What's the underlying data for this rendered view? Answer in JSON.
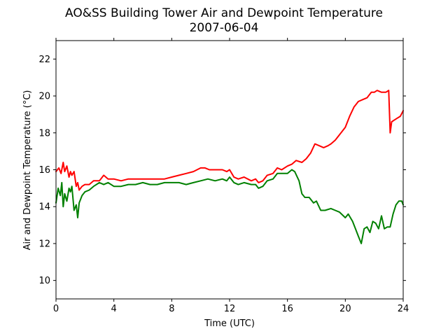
{
  "chart_data": {
    "type": "line",
    "title": "AO&SS Building Tower Air and Dewpoint Temperature",
    "subtitle": "2007-06-04",
    "xlabel": "Time (UTC)",
    "ylabel": "Air and Dewpoint Temperature (°C)",
    "xlim": [
      0,
      24
    ],
    "ylim": [
      9,
      23
    ],
    "xticks": [
      0,
      4,
      8,
      12,
      16,
      20,
      24
    ],
    "yticks": [
      10,
      12,
      14,
      16,
      18,
      20,
      22
    ],
    "xtick_labels": [
      "0",
      "4",
      "8",
      "12",
      "16",
      "20",
      "24"
    ],
    "ytick_labels": [
      "10",
      "12",
      "14",
      "16",
      "18",
      "20",
      "22"
    ],
    "grid": false,
    "series": [
      {
        "color": "#ff0000",
        "x": [
          0,
          0.2,
          0.35,
          0.5,
          0.6,
          0.75,
          0.9,
          1.0,
          1.1,
          1.25,
          1.4,
          1.5,
          1.6,
          1.8,
          2.0,
          2.3,
          2.6,
          3.0,
          3.3,
          3.6,
          4.0,
          4.5,
          5.0,
          5.5,
          6.0,
          6.5,
          7.0,
          7.5,
          8.0,
          8.5,
          9.0,
          9.5,
          10.0,
          10.3,
          10.6,
          11.0,
          11.5,
          11.8,
          12.0,
          12.3,
          12.6,
          13.0,
          13.5,
          13.8,
          14.0,
          14.3,
          14.6,
          15.0,
          15.3,
          15.6,
          16.0,
          16.3,
          16.6,
          17.0,
          17.3,
          17.6,
          17.9,
          18.2,
          18.5,
          18.8,
          19.0,
          19.3,
          19.6,
          20.0,
          20.3,
          20.6,
          20.9,
          21.2,
          21.5,
          21.8,
          22.0,
          22.2,
          22.5,
          22.8,
          23.0,
          23.1,
          23.2,
          23.4,
          23.6,
          23.8,
          24.0
        ],
        "y": [
          15.9,
          16.1,
          15.8,
          16.4,
          15.9,
          16.2,
          15.6,
          15.9,
          15.7,
          15.9,
          15.1,
          15.3,
          14.9,
          15.1,
          15.2,
          15.2,
          15.4,
          15.4,
          15.7,
          15.5,
          15.5,
          15.4,
          15.5,
          15.5,
          15.5,
          15.5,
          15.5,
          15.5,
          15.6,
          15.7,
          15.8,
          15.9,
          16.1,
          16.1,
          16.0,
          16.0,
          16.0,
          15.9,
          16.0,
          15.6,
          15.5,
          15.6,
          15.4,
          15.5,
          15.3,
          15.4,
          15.7,
          15.8,
          16.1,
          16.0,
          16.2,
          16.3,
          16.5,
          16.4,
          16.6,
          16.9,
          17.4,
          17.3,
          17.2,
          17.3,
          17.4,
          17.6,
          17.9,
          18.3,
          18.9,
          19.4,
          19.7,
          19.8,
          19.9,
          20.2,
          20.2,
          20.3,
          20.2,
          20.2,
          20.3,
          18.0,
          18.6,
          18.7,
          18.8,
          18.9,
          19.2
        ]
      },
      {
        "color": "#008000",
        "x": [
          0,
          0.15,
          0.3,
          0.4,
          0.5,
          0.6,
          0.75,
          0.9,
          1.0,
          1.1,
          1.25,
          1.4,
          1.5,
          1.6,
          1.8,
          2.0,
          2.3,
          2.6,
          3.0,
          3.3,
          3.6,
          4.0,
          4.5,
          5.0,
          5.5,
          6.0,
          6.5,
          7.0,
          7.5,
          8.0,
          8.5,
          9.0,
          9.5,
          10.0,
          10.5,
          11.0,
          11.5,
          11.8,
          12.0,
          12.3,
          12.6,
          13.0,
          13.5,
          13.8,
          14.0,
          14.3,
          14.6,
          15.0,
          15.3,
          15.6,
          16.0,
          16.3,
          16.5,
          16.8,
          17.0,
          17.2,
          17.5,
          17.8,
          18.0,
          18.3,
          18.6,
          19.0,
          19.3,
          19.6,
          20.0,
          20.2,
          20.5,
          20.7,
          20.9,
          21.1,
          21.3,
          21.5,
          21.7,
          21.9,
          22.1,
          22.3,
          22.5,
          22.7,
          22.9,
          23.1,
          23.3,
          23.5,
          23.7,
          23.9,
          24.0
        ],
        "y": [
          14.2,
          15.0,
          14.6,
          15.3,
          14.0,
          14.7,
          14.3,
          15.0,
          14.8,
          15.1,
          13.8,
          14.1,
          13.4,
          14.2,
          14.6,
          14.8,
          14.9,
          15.1,
          15.3,
          15.2,
          15.3,
          15.1,
          15.1,
          15.2,
          15.2,
          15.3,
          15.2,
          15.2,
          15.3,
          15.3,
          15.3,
          15.2,
          15.3,
          15.4,
          15.5,
          15.4,
          15.5,
          15.4,
          15.6,
          15.3,
          15.2,
          15.3,
          15.2,
          15.2,
          15.0,
          15.1,
          15.4,
          15.5,
          15.8,
          15.8,
          15.8,
          16.0,
          15.9,
          15.4,
          14.7,
          14.5,
          14.5,
          14.2,
          14.3,
          13.8,
          13.8,
          13.9,
          13.8,
          13.7,
          13.4,
          13.6,
          13.2,
          12.8,
          12.4,
          12.0,
          12.8,
          12.9,
          12.6,
          13.2,
          13.1,
          12.8,
          13.5,
          12.8,
          12.9,
          12.9,
          13.6,
          14.1,
          14.3,
          14.3,
          14.1
        ]
      }
    ]
  }
}
